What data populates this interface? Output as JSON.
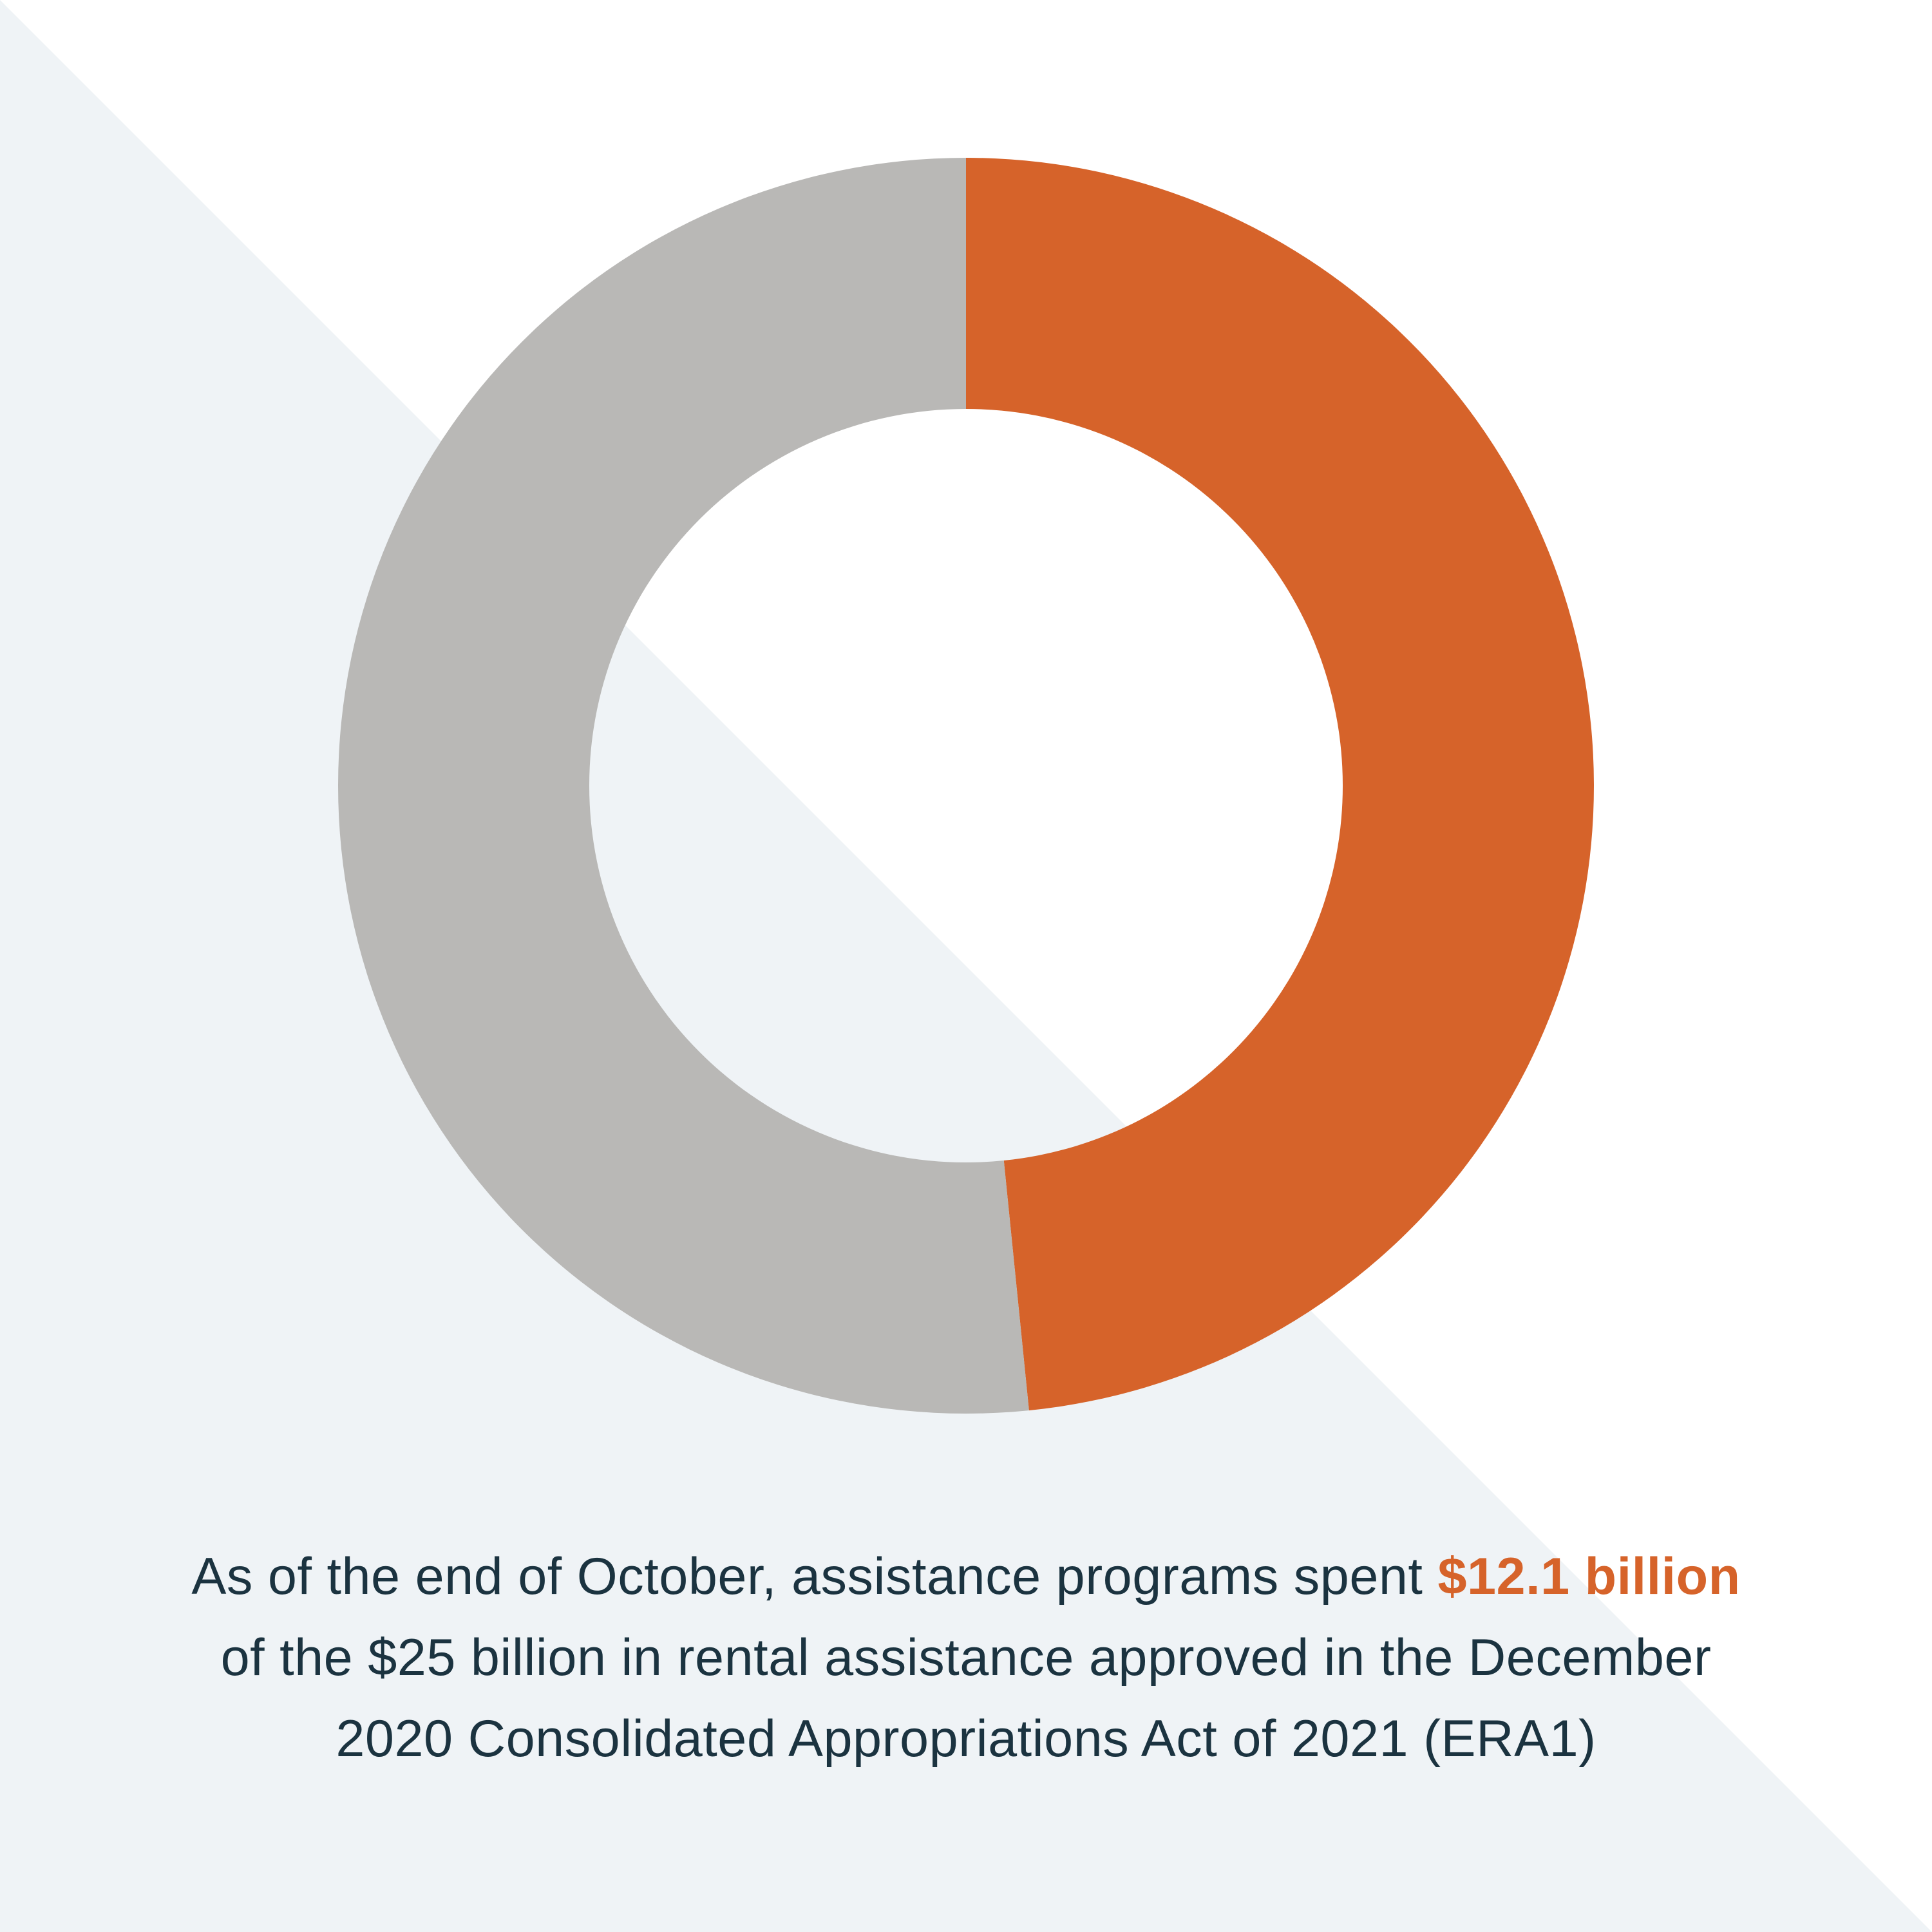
{
  "colors": {
    "background_light": "#eff3f6",
    "background_white": "#ffffff",
    "spent": "#d6632a",
    "remaining": "#b9b8b6",
    "text": "#1b3340"
  },
  "chart_data": {
    "type": "pie",
    "variant": "donut",
    "total": 25,
    "unit": "billion",
    "slices": [
      {
        "value": 12.1,
        "color": "#d6632a"
      },
      {
        "value": 12.9,
        "color": "#b9b8b6"
      }
    ]
  },
  "caption": {
    "line1_before": "As of the end of October, assistance programs spent ",
    "line1_highlight": "$12.1 billion",
    "line2": "of the $25 billion in rental assistance approved in the December",
    "line3": "2020 Consolidated Appropriations Act of 2021 (ERA1)"
  }
}
